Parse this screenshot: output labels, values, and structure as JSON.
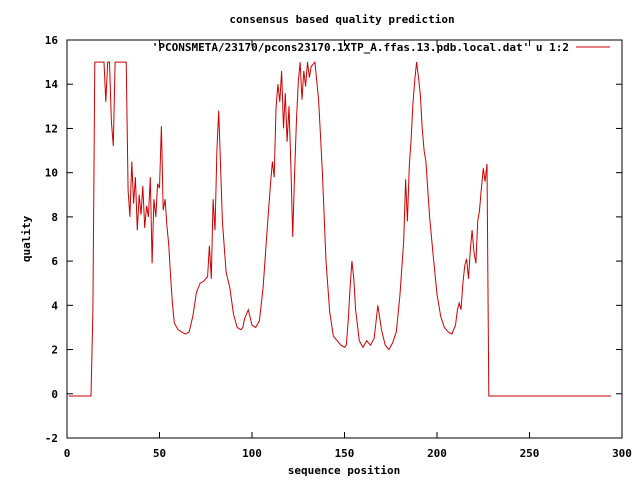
{
  "chart_data": {
    "type": "line",
    "title": "consensus based quality prediction",
    "xlabel": "sequence position",
    "ylabel": "quality",
    "xlim": [
      0,
      300
    ],
    "ylim": [
      -2,
      16
    ],
    "xticks": [
      0,
      50,
      100,
      150,
      200,
      250,
      300
    ],
    "yticks": [
      -2,
      0,
      2,
      4,
      6,
      8,
      10,
      12,
      14,
      16
    ],
    "grid": false,
    "legend": "top-right",
    "series": [
      {
        "name": "'PCONSMETA/23170/pcons23170.1XTP_A.ffas.13.pdb.local.dat' u 1:2",
        "color": "#cc0000",
        "x": [
          1,
          13,
          14,
          15,
          16,
          18,
          20,
          21,
          22,
          23,
          24,
          25,
          26,
          27,
          28,
          30,
          32,
          33,
          34,
          35,
          36,
          37,
          38,
          39,
          40,
          41,
          42,
          43,
          44,
          45,
          46,
          47,
          48,
          49,
          50,
          51,
          52,
          53,
          54,
          55,
          56,
          57,
          58,
          60,
          62,
          64,
          66,
          68,
          70,
          72,
          74,
          76,
          77,
          78,
          79,
          80,
          81,
          82,
          84,
          86,
          88,
          90,
          92,
          94,
          95,
          96,
          98,
          100,
          102,
          104,
          106,
          108,
          110,
          111,
          112,
          113,
          114,
          115,
          116,
          117,
          118,
          119,
          120,
          121,
          122,
          123,
          124,
          125,
          126,
          127,
          128,
          129,
          130,
          131,
          132,
          134,
          136,
          138,
          140,
          142,
          144,
          146,
          148,
          150,
          151,
          152,
          153,
          154,
          155,
          156,
          158,
          160,
          162,
          164,
          166,
          167,
          168,
          170,
          172,
          174,
          176,
          178,
          180,
          182,
          183,
          184,
          185,
          186,
          187,
          188,
          189,
          190,
          191,
          192,
          193,
          194,
          196,
          198,
          200,
          202,
          204,
          206,
          208,
          210,
          211,
          212,
          213,
          214,
          215,
          216,
          217,
          218,
          219,
          220,
          221,
          222,
          223,
          224,
          225,
          226,
          227,
          228,
          294
        ],
        "y": [
          -0.1,
          -0.1,
          3.8,
          15,
          15,
          15,
          15,
          13.2,
          15,
          15,
          12.3,
          11.2,
          15,
          15,
          15,
          15,
          15,
          9.2,
          8.0,
          10.5,
          8.6,
          9.8,
          7.4,
          9.0,
          8.1,
          9.4,
          7.5,
          8.5,
          8.0,
          9.8,
          5.9,
          8.8,
          8.0,
          9.5,
          9.3,
          12.1,
          8.3,
          8.8,
          7.6,
          6.7,
          5.3,
          4.1,
          3.2,
          2.9,
          2.8,
          2.7,
          2.8,
          3.5,
          4.6,
          5.0,
          5.1,
          5.3,
          6.7,
          5.2,
          8.8,
          7.4,
          11.0,
          12.8,
          7.8,
          5.5,
          4.8,
          3.6,
          3.0,
          2.9,
          3.0,
          3.4,
          3.8,
          3.1,
          3.0,
          3.3,
          4.8,
          7.2,
          9.5,
          10.5,
          9.8,
          12.9,
          14.0,
          13.2,
          14.6,
          12.0,
          13.6,
          11.4,
          13.0,
          10.3,
          7.1,
          9.8,
          12.3,
          14.1,
          15,
          13.3,
          14.6,
          13.9,
          15,
          14.3,
          14.8,
          15,
          13.3,
          10.1,
          6.0,
          3.7,
          2.6,
          2.4,
          2.2,
          2.1,
          2.2,
          3.3,
          4.8,
          6.0,
          5.2,
          3.8,
          2.4,
          2.1,
          2.4,
          2.2,
          2.5,
          3.2,
          4.0,
          2.9,
          2.2,
          2.0,
          2.3,
          2.8,
          4.5,
          6.9,
          9.7,
          7.8,
          10.3,
          11.5,
          13.1,
          14.2,
          15,
          14.3,
          13.5,
          12.0,
          11.0,
          10.5,
          8.0,
          6.2,
          4.5,
          3.5,
          3.0,
          2.8,
          2.7,
          3.1,
          3.8,
          4.1,
          3.8,
          5.0,
          5.8,
          6.1,
          5.2,
          6.5,
          7.4,
          6.4,
          5.9,
          7.8,
          8.3,
          9.3,
          10.2,
          9.6,
          10.4,
          -0.1,
          -0.1
        ]
      }
    ]
  }
}
